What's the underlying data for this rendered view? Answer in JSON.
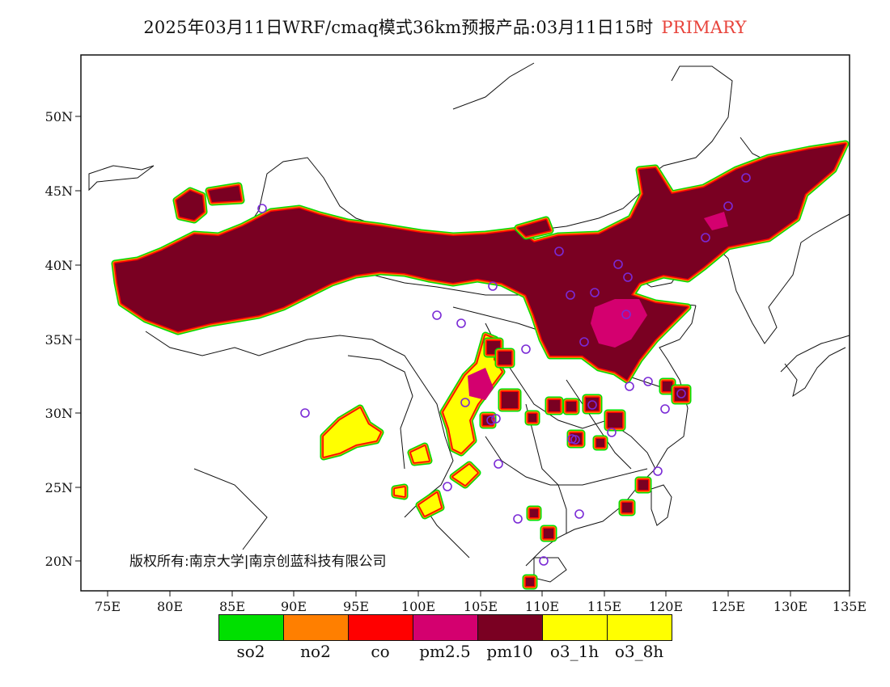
{
  "title": {
    "text": "2025年03月11日WRF/cmaq模式36km预报产品:03月11日15时",
    "tag": "PRIMARY"
  },
  "axes": {
    "lon_ticks": [
      "75E",
      "80E",
      "85E",
      "90E",
      "95E",
      "100E",
      "105E",
      "110E",
      "115E",
      "120E",
      "125E",
      "130E",
      "135E"
    ],
    "lat_ticks": [
      "50N",
      "45N",
      "40N",
      "35N",
      "30N",
      "25N",
      "20N"
    ]
  },
  "copyright": "版权所有:南京大学|南京创蓝科技有限公司",
  "legend": [
    {
      "label": "so2",
      "color": "#00e000"
    },
    {
      "label": "no2",
      "color": "#ff7f00"
    },
    {
      "label": "co",
      "color": "#ff0000"
    },
    {
      "label": "pm2.5",
      "color": "#d4006f"
    },
    {
      "label": "pm10",
      "color": "#7a0022"
    },
    {
      "label": "o3_1h",
      "color": "#ffff00"
    },
    {
      "label": "o3_8h",
      "color": "#ffff00"
    }
  ],
  "map": {
    "lon_range": [
      73,
      135
    ],
    "lat_range": [
      18,
      54
    ],
    "station_color": "#7a2ad6"
  }
}
